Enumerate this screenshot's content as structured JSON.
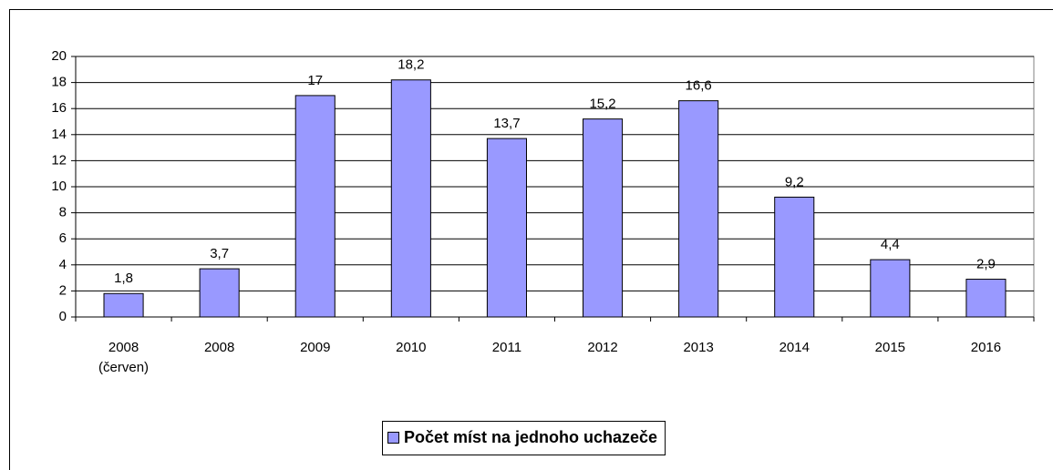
{
  "chart_data": {
    "type": "bar",
    "categories": [
      "2008 (červen)",
      "2008",
      "2009",
      "2010",
      "2011",
      "2012",
      "2013",
      "2014",
      "2015",
      "2016"
    ],
    "series": [
      {
        "name": "Počet míst na jednoho uchazeče",
        "color": "#9999ff",
        "values": [
          1.8,
          3.7,
          17,
          18.2,
          13.7,
          15.2,
          16.6,
          9.2,
          4.4,
          2.9
        ],
        "value_labels": [
          "1,8",
          "3,7",
          "17",
          "18,2",
          "13,7",
          "15,2",
          "16,6",
          "9,2",
          "4,4",
          "2,9"
        ]
      }
    ],
    "ylim": [
      0,
      20
    ],
    "yticks": [
      0,
      2,
      4,
      6,
      8,
      10,
      12,
      14,
      16,
      18,
      20
    ],
    "grid": true,
    "legend": "bottom"
  }
}
